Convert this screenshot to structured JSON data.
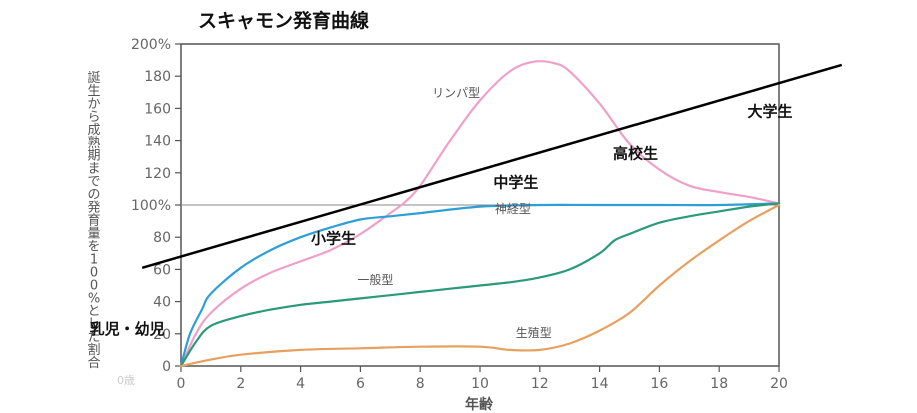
{
  "chart_data": {
    "type": "line",
    "title": "スキャモン発育曲線",
    "xlabel": "年齢",
    "ylabel": "誕生から成熟期までの発育量を100%とした割合",
    "xlim": [
      0,
      20
    ],
    "ylim": [
      0,
      200
    ],
    "x_ticks": [
      "0",
      "2",
      "4",
      "6",
      "8",
      "10",
      "12",
      "14",
      "16",
      "18",
      "20"
    ],
    "y_ticks": [
      "0",
      "20",
      "40",
      "60",
      "80",
      "100%",
      "120",
      "140",
      "160",
      "180",
      "200%"
    ],
    "series": [
      {
        "name": "リンパ型",
        "color": "#f0a0c8",
        "points": [
          [
            0,
            0
          ],
          [
            0.5,
            20
          ],
          [
            1,
            33
          ],
          [
            2,
            48
          ],
          [
            3,
            58
          ],
          [
            4,
            65
          ],
          [
            5,
            72
          ],
          [
            6,
            82
          ],
          [
            7,
            95
          ],
          [
            7.5,
            102
          ],
          [
            8,
            112
          ],
          [
            9,
            140
          ],
          [
            10,
            165
          ],
          [
            11,
            183
          ],
          [
            11.8,
            189
          ],
          [
            12.5,
            188
          ],
          [
            13,
            183
          ],
          [
            14,
            163
          ],
          [
            15,
            138
          ],
          [
            16,
            122
          ],
          [
            17,
            112
          ],
          [
            18,
            108
          ],
          [
            19,
            105
          ],
          [
            20,
            101
          ]
        ]
      },
      {
        "name": "神経型",
        "color": "#2e9ed6",
        "points": [
          [
            0,
            0
          ],
          [
            0.3,
            20
          ],
          [
            0.7,
            35
          ],
          [
            1,
            45
          ],
          [
            2,
            61
          ],
          [
            3,
            72
          ],
          [
            4,
            80
          ],
          [
            5,
            86
          ],
          [
            6,
            91
          ],
          [
            7,
            93
          ],
          [
            8,
            95
          ],
          [
            10,
            99
          ],
          [
            12,
            100
          ],
          [
            14,
            100
          ],
          [
            16,
            100
          ],
          [
            18,
            100
          ],
          [
            20,
            101
          ]
        ]
      },
      {
        "name": "一般型",
        "color": "#2a9a78",
        "points": [
          [
            0,
            0
          ],
          [
            0.5,
            15
          ],
          [
            1,
            25
          ],
          [
            2,
            31
          ],
          [
            3,
            35
          ],
          [
            4,
            38
          ],
          [
            5,
            40
          ],
          [
            6,
            42
          ],
          [
            7,
            44
          ],
          [
            8,
            46
          ],
          [
            9,
            48
          ],
          [
            10,
            50
          ],
          [
            11,
            52
          ],
          [
            12,
            55
          ],
          [
            13,
            60
          ],
          [
            14,
            70
          ],
          [
            14.5,
            78
          ],
          [
            15,
            82
          ],
          [
            16,
            89
          ],
          [
            17,
            93
          ],
          [
            18,
            96
          ],
          [
            19,
            99
          ],
          [
            20,
            101
          ]
        ]
      },
      {
        "name": "生殖型",
        "color": "#e8a060",
        "points": [
          [
            0,
            0
          ],
          [
            1,
            4
          ],
          [
            2,
            7
          ],
          [
            4,
            10
          ],
          [
            6,
            11
          ],
          [
            8,
            12
          ],
          [
            10,
            12
          ],
          [
            11,
            10
          ],
          [
            12,
            10
          ],
          [
            13,
            14
          ],
          [
            14,
            22
          ],
          [
            15,
            33
          ],
          [
            16,
            50
          ],
          [
            17,
            65
          ],
          [
            18,
            78
          ],
          [
            19,
            90
          ],
          [
            20,
            100
          ]
        ]
      }
    ],
    "overlay_line": {
      "color": "#000000",
      "points": [
        [
          -1.3,
          61
        ],
        [
          22.1,
          187
        ]
      ]
    },
    "series_labels": [
      {
        "text": "リンパ型",
        "x": 9.2,
        "y": 167
      },
      {
        "text": "神経型",
        "x": 11.1,
        "y": 95
      },
      {
        "text": "一般型",
        "x": 6.5,
        "y": 51
      },
      {
        "text": "生殖型",
        "x": 11.8,
        "y": 18
      }
    ],
    "stage_labels": [
      {
        "text": "乳児・幼児",
        "x": -1.8,
        "y": 20
      },
      {
        "text": "小学生",
        "x": 5.1,
        "y": 76
      },
      {
        "text": "中学生",
        "x": 11.2,
        "y": 111
      },
      {
        "text": "高校生",
        "x": 15.2,
        "y": 129
      },
      {
        "text": "大学生",
        "x": 19.7,
        "y": 155
      }
    ],
    "zero_label": "0歳",
    "grid": false,
    "reference_line_y": 100
  }
}
